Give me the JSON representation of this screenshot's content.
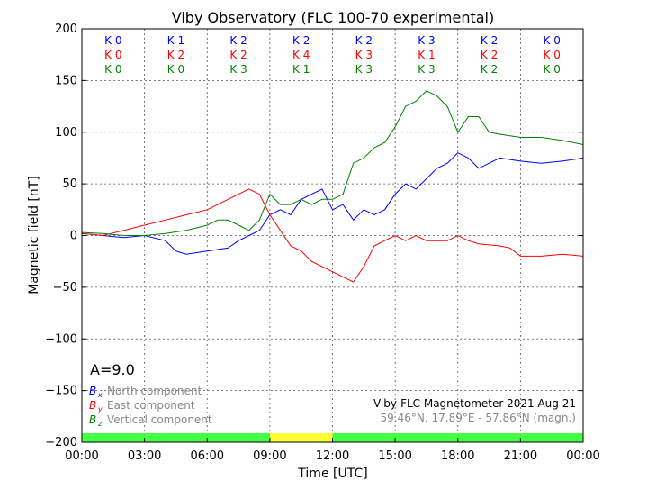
{
  "chart_data": {
    "type": "line",
    "title": "Viby Observatory (FLC 100-70 experimental)",
    "xlabel": "Time [UTC]",
    "ylabel": "Magnetic field [nT]",
    "xlim": [
      0,
      24
    ],
    "ylim": [
      -200,
      200
    ],
    "grid": true,
    "x_ticks": [
      "00:00",
      "03:00",
      "06:00",
      "09:00",
      "12:00",
      "15:00",
      "18:00",
      "21:00",
      "00:00"
    ],
    "y_ticks": [
      200,
      150,
      100,
      50,
      0,
      -50,
      -100,
      -150,
      -200
    ],
    "y_tick_labels": [
      "200",
      "150",
      "100",
      "50",
      "0",
      "−50",
      "−100",
      "−150",
      "−200"
    ],
    "series": [
      {
        "name": "North component",
        "symbol": "B",
        "sub": "x",
        "color": "#0000ff",
        "x": [
          0,
          1,
          2,
          3,
          4,
          4.5,
          5,
          6,
          7,
          7.5,
          8,
          8.5,
          9,
          9.5,
          10,
          10.5,
          11,
          11.5,
          12,
          12.5,
          13,
          13.5,
          14,
          14.5,
          15,
          15.5,
          16,
          16.5,
          17,
          17.5,
          18,
          18.5,
          19,
          19.5,
          20,
          21,
          22,
          23,
          24
        ],
        "values": [
          2,
          0,
          -2,
          0,
          -5,
          -15,
          -18,
          -15,
          -12,
          -5,
          0,
          5,
          20,
          25,
          20,
          35,
          40,
          45,
          25,
          30,
          15,
          25,
          20,
          25,
          40,
          50,
          45,
          55,
          65,
          70,
          80,
          75,
          65,
          70,
          75,
          72,
          70,
          72,
          75
        ]
      },
      {
        "name": "East component",
        "symbol": "B",
        "sub": "y",
        "color": "#ff0000",
        "x": [
          0,
          1,
          2,
          3,
          4,
          5,
          6,
          7,
          7.5,
          8,
          8.5,
          9,
          9.5,
          10,
          10.5,
          11,
          11.5,
          12,
          12.5,
          13,
          13.5,
          14,
          14.5,
          15,
          15.5,
          16,
          16.5,
          17,
          17.5,
          18,
          18.5,
          19,
          20,
          20.5,
          21,
          22,
          23,
          24
        ],
        "values": [
          2,
          0,
          5,
          10,
          15,
          20,
          25,
          35,
          40,
          45,
          40,
          20,
          5,
          -10,
          -15,
          -25,
          -30,
          -35,
          -40,
          -45,
          -30,
          -10,
          -5,
          0,
          -5,
          0,
          -5,
          -5,
          -5,
          0,
          -5,
          -8,
          -10,
          -12,
          -20,
          -20,
          -18,
          -20
        ]
      },
      {
        "name": "Vertical component",
        "symbol": "B",
        "sub": "z",
        "color": "#008000",
        "x": [
          0,
          1,
          2,
          3,
          4,
          5,
          6,
          6.5,
          7,
          7.5,
          8,
          8.5,
          9,
          9.5,
          10,
          10.5,
          11,
          11.5,
          12,
          12.5,
          13,
          13.5,
          14,
          14.5,
          15,
          15.5,
          16,
          16.5,
          17,
          17.5,
          18,
          18.5,
          19,
          19.5,
          20,
          21,
          22,
          23,
          24
        ],
        "values": [
          3,
          2,
          0,
          0,
          2,
          5,
          10,
          15,
          15,
          10,
          5,
          15,
          40,
          30,
          30,
          35,
          30,
          35,
          35,
          40,
          70,
          75,
          85,
          90,
          105,
          125,
          130,
          140,
          135,
          125,
          100,
          115,
          115,
          100,
          98,
          95,
          95,
          92,
          88
        ]
      }
    ],
    "k_indices": {
      "x": [
        [
          "K 0",
          "K 1",
          "K 2",
          "K 2",
          "K 2",
          "K 3",
          "K 2",
          "K 0"
        ]
      ],
      "y": [
        [
          "K 0",
          "K 2",
          "K 2",
          "K 4",
          "K 3",
          "K 1",
          "K 2",
          "K 0"
        ]
      ],
      "z": [
        [
          "K 0",
          "K 0",
          "K 3",
          "K 1",
          "K 3",
          "K 3",
          "K 2",
          "K 0"
        ]
      ]
    },
    "activity_bar": [
      "#44ff44",
      "#44ff44",
      "#44ff44",
      "#ffff33",
      "#44ff44",
      "#44ff44",
      "#44ff44",
      "#44ff44"
    ],
    "a_index": "A=9.0",
    "station_label": "Viby-FLC Magnetometer 2021 Aug 21",
    "coords_label": "59.46°N, 17.89°E - 57.86°N (magn.)"
  }
}
